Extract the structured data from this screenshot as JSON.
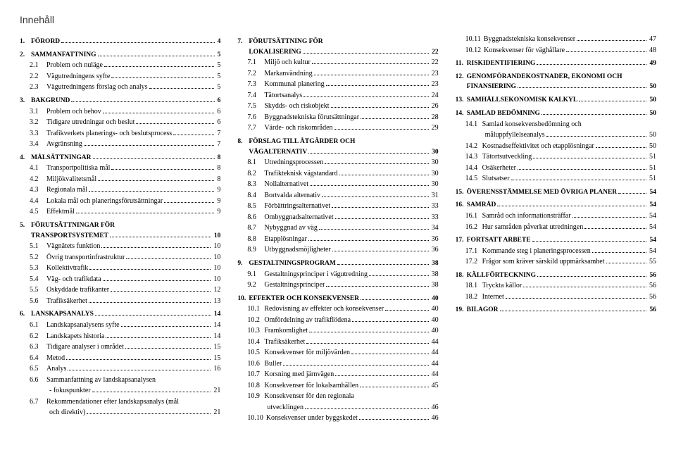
{
  "title": "Innehåll",
  "style": {
    "title_fontsize": 14,
    "body_fontsize": 10,
    "title_font": "Trebuchet MS",
    "body_font": "Georgia",
    "text_color": "#000000",
    "background_color": "#ffffff",
    "dot_color": "#000000"
  },
  "columns": [
    [
      {
        "level": 1,
        "num": "1.",
        "label": "FÖRORD",
        "page": "4"
      },
      {
        "level": 1,
        "num": "2.",
        "label": "SAMMANFATTNING",
        "page": "5"
      },
      {
        "level": 2,
        "num": "2.1",
        "label": "Problem och nuläge",
        "page": "5"
      },
      {
        "level": 2,
        "num": "2.2",
        "label": "Vägutredningens syfte",
        "page": "5"
      },
      {
        "level": 2,
        "num": "2.3",
        "label": "Vägutredningens förslag och analys",
        "page": "5"
      },
      {
        "level": 1,
        "num": "3.",
        "label": "BAKGRUND",
        "page": "6"
      },
      {
        "level": 2,
        "num": "3.1",
        "label": "Problem och behov",
        "page": "6"
      },
      {
        "level": 2,
        "num": "3.2",
        "label": "Tidigare utredningar och beslut",
        "page": "6"
      },
      {
        "level": 2,
        "num": "3.3",
        "label": "Trafikverkets planerings- och beslutsprocess",
        "page": "7"
      },
      {
        "level": 2,
        "num": "3.4",
        "label": "Avgränsning",
        "page": "7"
      },
      {
        "level": 1,
        "num": "4.",
        "label": "MÅLSÄTTNINGAR",
        "page": "8"
      },
      {
        "level": 2,
        "num": "4.1",
        "label": "Transportpolitiska mål",
        "page": "8"
      },
      {
        "level": 2,
        "num": "4.2",
        "label": "Miljökvalitetsmål",
        "page": "8"
      },
      {
        "level": 2,
        "num": "4.3",
        "label": "Regionala mål",
        "page": "9"
      },
      {
        "level": 2,
        "num": "4.4",
        "label": "Lokala mål och planeringsförutsättningar",
        "page": "9"
      },
      {
        "level": 2,
        "num": "4.5",
        "label": "Effektmål",
        "page": "9"
      },
      {
        "level": 1,
        "num": "5.",
        "label": "FÖRUTSÄTTNINGAR FÖR",
        "page": ""
      },
      {
        "level": 1,
        "num": "",
        "label": "TRANSPORTSYSTEMET",
        "page": "10",
        "nomargin": true
      },
      {
        "level": 2,
        "num": "5.1",
        "label": "Vägnätets funktion",
        "page": "10"
      },
      {
        "level": 2,
        "num": "5.2",
        "label": "Övrig transportinfrastruktur",
        "page": "10"
      },
      {
        "level": 2,
        "num": "5.3",
        "label": "Kollektivtrafik",
        "page": "10"
      },
      {
        "level": 2,
        "num": "5.4",
        "label": "Väg- och trafikdata",
        "page": "10"
      },
      {
        "level": 2,
        "num": "5.5",
        "label": "Oskyddade trafikanter",
        "page": "12"
      },
      {
        "level": 2,
        "num": "5.6",
        "label": "Trafiksäkerhet",
        "page": "13"
      },
      {
        "level": 1,
        "num": "6.",
        "label": "LANSKAPSANALYS",
        "page": "14"
      },
      {
        "level": 2,
        "num": "6.1",
        "label": "Landskapsanalysens syfte",
        "page": "14"
      },
      {
        "level": 2,
        "num": "6.2",
        "label": "Landskapets historia",
        "page": "14"
      },
      {
        "level": 2,
        "num": "6.3",
        "label": "Tidigare analyser i området",
        "page": "15"
      },
      {
        "level": 2,
        "num": "6.4",
        "label": "Metod",
        "page": "15"
      },
      {
        "level": 2,
        "num": "6.5",
        "label": "Analys",
        "page": "16"
      },
      {
        "level": 2,
        "num": "6.6",
        "label": "Sammanfattning av landskapsanalysen",
        "page": ""
      },
      {
        "level": 3,
        "num": "",
        "label": "- fokuspunkter",
        "page": "21"
      },
      {
        "level": 2,
        "num": "6.7",
        "label": "Rekommendationer efter landskapsanalys (mål",
        "page": ""
      },
      {
        "level": 3,
        "num": "",
        "label": "och direktiv)",
        "page": "21"
      }
    ],
    [
      {
        "level": 1,
        "num": "7.",
        "label": "FÖRUTSÄTTNING FÖR",
        "page": ""
      },
      {
        "level": 1,
        "num": "",
        "label": "LOKALISERING",
        "page": "22",
        "nomargin": true
      },
      {
        "level": 2,
        "num": "7.1",
        "label": "Miljö och kultur",
        "page": "22"
      },
      {
        "level": 2,
        "num": "7.2",
        "label": "Markanvändning",
        "page": "23"
      },
      {
        "level": 2,
        "num": "7.3",
        "label": "Kommunal planering",
        "page": "23"
      },
      {
        "level": 2,
        "num": "7.4",
        "label": "Tätortsanalys",
        "page": "24"
      },
      {
        "level": 2,
        "num": "7.5",
        "label": "Skydds- och riskobjekt",
        "page": "26"
      },
      {
        "level": 2,
        "num": "7.6",
        "label": "Byggnadstekniska förutsättningar",
        "page": "28"
      },
      {
        "level": 2,
        "num": "7.7",
        "label": "Värde- och riskområden",
        "page": "29"
      },
      {
        "level": 1,
        "num": "8.",
        "label": "FÖRSLAG TILL ÅTGÄRDER OCH",
        "page": ""
      },
      {
        "level": 1,
        "num": "",
        "label": "VÄGALTERNATIV",
        "page": "30",
        "nomargin": true
      },
      {
        "level": 2,
        "num": "8.1",
        "label": "Utredningsprocessen",
        "page": "30"
      },
      {
        "level": 2,
        "num": "8.2",
        "label": "Trafikteknisk vägstandard",
        "page": "30"
      },
      {
        "level": 2,
        "num": "8.3",
        "label": "Nollalternativet",
        "page": "30"
      },
      {
        "level": 2,
        "num": "8.4",
        "label": "Bortvalda alternativ",
        "page": "31"
      },
      {
        "level": 2,
        "num": "8.5",
        "label": "Förbättringsalternativet",
        "page": "33"
      },
      {
        "level": 2,
        "num": "8.6",
        "label": "Ombyggnadsalternativet",
        "page": "33"
      },
      {
        "level": 2,
        "num": "8.7",
        "label": "Nybyggnad av väg",
        "page": "34"
      },
      {
        "level": 2,
        "num": "8.8",
        "label": "Etapplösningar",
        "page": "36"
      },
      {
        "level": 2,
        "num": "8.9",
        "label": "Utbyggnadsmöjligheter",
        "page": "36"
      },
      {
        "level": 1,
        "num": "9.",
        "label": "GESTALTNINGSPROGRAM",
        "page": "38"
      },
      {
        "level": 2,
        "num": "9.1",
        "label": "Gestaltningsprinciper i vägutredning",
        "page": "38"
      },
      {
        "level": 2,
        "num": "9.2",
        "label": "Gestaltningsprinciper",
        "page": "38"
      },
      {
        "level": 1,
        "num": "10.",
        "label": "EFFEKTER OCH KONSEKVENSER",
        "page": "40"
      },
      {
        "level": 2,
        "num": "10.1",
        "label": "Redovisning av effekter och konsekvenser",
        "page": "40"
      },
      {
        "level": 2,
        "num": "10.2",
        "label": "Omfördelning av trafikflödena",
        "page": "40"
      },
      {
        "level": 2,
        "num": "10.3",
        "label": "Framkomlighet",
        "page": "40"
      },
      {
        "level": 2,
        "num": "10.4",
        "label": "Trafiksäkerhet",
        "page": "44"
      },
      {
        "level": 2,
        "num": "10.5",
        "label": "Konsekvenser för miljövärden",
        "page": "44"
      },
      {
        "level": 2,
        "num": "10.6",
        "label": "Buller",
        "page": "44"
      },
      {
        "level": 2,
        "num": "10.7",
        "label": "Korsning med järnvägen",
        "page": "44"
      },
      {
        "level": 2,
        "num": "10.8",
        "label": "Konsekvenser för lokalsamhällen",
        "page": "45"
      },
      {
        "level": 2,
        "num": "10.9",
        "label": "Konsekvenser för den regionala",
        "page": ""
      },
      {
        "level": 3,
        "num": "",
        "label": "utvecklingen",
        "page": "46"
      },
      {
        "level": 2,
        "num": "10.10",
        "label": "Konsekvenser under byggskedet",
        "page": "46"
      }
    ],
    [
      {
        "level": 2,
        "num": "10.11",
        "label": "Byggnadstekniska konsekvenser",
        "page": "47"
      },
      {
        "level": 2,
        "num": "10.12",
        "label": "Konsekvenser för väghållare",
        "page": "48"
      },
      {
        "level": 1,
        "num": "11.",
        "label": "RISKIDENTIFIERING",
        "page": "49"
      },
      {
        "level": 1,
        "num": "12.",
        "label": "GENOMFÖRANDEKOSTNADER, EKONOMI OCH",
        "page": ""
      },
      {
        "level": 1,
        "num": "",
        "label": "FINANSIERING",
        "page": "50",
        "nomargin": true
      },
      {
        "level": 1,
        "num": "13.",
        "label": "SAMHÄLLSEKONOMISK KALKYL",
        "page": "50"
      },
      {
        "level": 1,
        "num": "14.",
        "label": "SAMLAD BEDÖMNING",
        "page": "50"
      },
      {
        "level": 2,
        "num": "14.1",
        "label": "Samlad konsekvensbedömning och",
        "page": ""
      },
      {
        "level": 3,
        "num": "",
        "label": "måluppfyllelseanalys",
        "page": "50"
      },
      {
        "level": 2,
        "num": "14.2",
        "label": "Kostnadseffektivitet och etapplösningar",
        "page": "50"
      },
      {
        "level": 2,
        "num": "14.3",
        "label": "Tätortsutveckling",
        "page": "51"
      },
      {
        "level": 2,
        "num": "14.4",
        "label": "Osäkerheter",
        "page": "51"
      },
      {
        "level": 2,
        "num": "14.5",
        "label": "Slutsatser",
        "page": "51"
      },
      {
        "level": 1,
        "num": "15.",
        "label": "ÖVERENSSTÄMMELSE MED ÖVRIGA PLANER",
        "page": "54"
      },
      {
        "level": 1,
        "num": "16.",
        "label": "SAMRÅD",
        "page": "54"
      },
      {
        "level": 2,
        "num": "16.1",
        "label": "Samråd och informationsträffar",
        "page": "54"
      },
      {
        "level": 2,
        "num": "16.2",
        "label": "Hur samråden påverkat utredningen",
        "page": "54"
      },
      {
        "level": 1,
        "num": "17.",
        "label": "FORTSATT ARBETE",
        "page": "54"
      },
      {
        "level": 2,
        "num": "17.1",
        "label": "Kommande steg i planeringsprocessen",
        "page": "54"
      },
      {
        "level": 2,
        "num": "17.2",
        "label": "Frågor som kräver särskild uppmärksamhet",
        "page": "55"
      },
      {
        "level": 1,
        "num": "18.",
        "label": "KÄLLFÖRTECKNING",
        "page": "56"
      },
      {
        "level": 2,
        "num": "18.1",
        "label": "Tryckta källor",
        "page": "56"
      },
      {
        "level": 2,
        "num": "18.2",
        "label": "Internet",
        "page": "56"
      },
      {
        "level": 1,
        "num": "19.",
        "label": "BILAGOR",
        "page": "56"
      }
    ]
  ]
}
